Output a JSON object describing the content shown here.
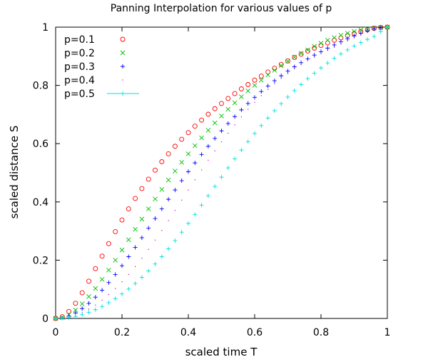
{
  "chart_data": {
    "type": "scatter",
    "title": "Panning Interpolation for various values of p",
    "xlabel": "scaled time T",
    "ylabel": "scaled distance S",
    "xlim": [
      0,
      1
    ],
    "ylim": [
      0,
      1
    ],
    "xticks": [
      0,
      0.2,
      0.4,
      0.6,
      0.8,
      1
    ],
    "yticks": [
      0,
      0.2,
      0.4,
      0.6,
      0.8,
      1
    ],
    "xtick_labels": [
      "0",
      "0.2",
      "0.4",
      "0.6",
      "0.8",
      "1"
    ],
    "ytick_labels": [
      "0",
      "0.2",
      "0.4",
      "0.6",
      "0.8",
      "1"
    ],
    "legend_position": "top-left",
    "grid": false,
    "series": [
      {
        "name": "p=0.1",
        "marker": "circle",
        "color": "#ff0000",
        "x": [
          0.0,
          0.02,
          0.04,
          0.06,
          0.08,
          0.1,
          0.12,
          0.14,
          0.16,
          0.18,
          0.2,
          0.22,
          0.24,
          0.26,
          0.28,
          0.3,
          0.32,
          0.34,
          0.36,
          0.38,
          0.4,
          0.42,
          0.44,
          0.46,
          0.48,
          0.5,
          0.52,
          0.54,
          0.56,
          0.58,
          0.6,
          0.62,
          0.64,
          0.66,
          0.68,
          0.7,
          0.72,
          0.74,
          0.76,
          0.78,
          0.8,
          0.82,
          0.84,
          0.86,
          0.88,
          0.9,
          0.92,
          0.94,
          0.96,
          0.98,
          1.0
        ],
        "y": [
          0.0,
          0.006,
          0.024,
          0.052,
          0.088,
          0.128,
          0.171,
          0.214,
          0.257,
          0.298,
          0.338,
          0.376,
          0.412,
          0.446,
          0.478,
          0.509,
          0.538,
          0.565,
          0.591,
          0.615,
          0.638,
          0.66,
          0.681,
          0.701,
          0.72,
          0.738,
          0.755,
          0.772,
          0.788,
          0.803,
          0.818,
          0.832,
          0.846,
          0.859,
          0.872,
          0.884,
          0.896,
          0.907,
          0.918,
          0.928,
          0.937,
          0.946,
          0.955,
          0.963,
          0.971,
          0.978,
          0.985,
          0.991,
          0.996,
          0.999,
          1.0
        ]
      },
      {
        "name": "p=0.2",
        "marker": "x",
        "color": "#00c000",
        "x": [
          0.0,
          0.02,
          0.04,
          0.06,
          0.08,
          0.1,
          0.12,
          0.14,
          0.16,
          0.18,
          0.2,
          0.22,
          0.24,
          0.26,
          0.28,
          0.3,
          0.32,
          0.34,
          0.36,
          0.38,
          0.4,
          0.42,
          0.44,
          0.46,
          0.48,
          0.5,
          0.52,
          0.54,
          0.56,
          0.58,
          0.6,
          0.62,
          0.64,
          0.66,
          0.68,
          0.7,
          0.72,
          0.74,
          0.76,
          0.78,
          0.8,
          0.82,
          0.84,
          0.86,
          0.88,
          0.9,
          0.92,
          0.94,
          0.96,
          0.98,
          1.0
        ],
        "y": [
          0.0,
          0.003,
          0.013,
          0.029,
          0.05,
          0.075,
          0.103,
          0.134,
          0.166,
          0.2,
          0.235,
          0.27,
          0.306,
          0.341,
          0.376,
          0.41,
          0.443,
          0.475,
          0.506,
          0.536,
          0.565,
          0.593,
          0.62,
          0.646,
          0.671,
          0.695,
          0.718,
          0.74,
          0.761,
          0.781,
          0.8,
          0.818,
          0.836,
          0.852,
          0.868,
          0.883,
          0.897,
          0.91,
          0.922,
          0.934,
          0.945,
          0.955,
          0.964,
          0.972,
          0.979,
          0.985,
          0.99,
          0.994,
          0.997,
          0.999,
          1.0
        ]
      },
      {
        "name": "p=0.3",
        "marker": "plus",
        "color": "#0000ff",
        "x": [
          0.0,
          0.02,
          0.04,
          0.06,
          0.08,
          0.1,
          0.12,
          0.14,
          0.16,
          0.18,
          0.2,
          0.22,
          0.24,
          0.26,
          0.28,
          0.3,
          0.32,
          0.34,
          0.36,
          0.38,
          0.4,
          0.42,
          0.44,
          0.46,
          0.48,
          0.5,
          0.52,
          0.54,
          0.56,
          0.58,
          0.6,
          0.62,
          0.64,
          0.66,
          0.68,
          0.7,
          0.72,
          0.74,
          0.76,
          0.78,
          0.8,
          0.82,
          0.84,
          0.86,
          0.88,
          0.9,
          0.92,
          0.94,
          0.96,
          0.98,
          1.0
        ],
        "y": [
          0.0,
          0.002,
          0.008,
          0.019,
          0.034,
          0.052,
          0.073,
          0.097,
          0.123,
          0.151,
          0.181,
          0.212,
          0.244,
          0.277,
          0.31,
          0.343,
          0.376,
          0.409,
          0.441,
          0.473,
          0.504,
          0.534,
          0.563,
          0.591,
          0.618,
          0.644,
          0.669,
          0.693,
          0.716,
          0.738,
          0.759,
          0.779,
          0.798,
          0.816,
          0.833,
          0.849,
          0.864,
          0.878,
          0.891,
          0.904,
          0.916,
          0.928,
          0.939,
          0.95,
          0.96,
          0.97,
          0.979,
          0.987,
          0.994,
          0.998,
          1.0
        ]
      },
      {
        "name": "p=0.4",
        "marker": "dot",
        "color": "#c000c0",
        "x": [
          0.0,
          0.02,
          0.04,
          0.06,
          0.08,
          0.1,
          0.12,
          0.14,
          0.16,
          0.18,
          0.2,
          0.22,
          0.24,
          0.26,
          0.28,
          0.3,
          0.32,
          0.34,
          0.36,
          0.38,
          0.4,
          0.42,
          0.44,
          0.46,
          0.48,
          0.5,
          0.52,
          0.54,
          0.56,
          0.58,
          0.6,
          0.62,
          0.64,
          0.66,
          0.68,
          0.7,
          0.72,
          0.74,
          0.76,
          0.78,
          0.8,
          0.82,
          0.84,
          0.86,
          0.88,
          0.9,
          0.92,
          0.94,
          0.96,
          0.98,
          1.0
        ],
        "y": [
          0.0,
          0.001,
          0.005,
          0.011,
          0.02,
          0.032,
          0.046,
          0.063,
          0.082,
          0.103,
          0.126,
          0.151,
          0.178,
          0.207,
          0.237,
          0.269,
          0.302,
          0.336,
          0.371,
          0.406,
          0.441,
          0.476,
          0.51,
          0.543,
          0.575,
          0.606,
          0.636,
          0.665,
          0.692,
          0.718,
          0.742,
          0.765,
          0.786,
          0.806,
          0.824,
          0.841,
          0.857,
          0.871,
          0.885,
          0.897,
          0.909,
          0.92,
          0.931,
          0.942,
          0.953,
          0.963,
          0.973,
          0.983,
          0.991,
          0.997,
          1.0
        ]
      },
      {
        "name": "p=0.5",
        "marker": "plus-line",
        "color": "#00e0e0",
        "x": [
          0.0,
          0.02,
          0.04,
          0.06,
          0.08,
          0.1,
          0.12,
          0.14,
          0.16,
          0.18,
          0.2,
          0.22,
          0.24,
          0.26,
          0.28,
          0.3,
          0.32,
          0.34,
          0.36,
          0.38,
          0.4,
          0.42,
          0.44,
          0.46,
          0.48,
          0.5,
          0.52,
          0.54,
          0.56,
          0.58,
          0.6,
          0.62,
          0.64,
          0.66,
          0.68,
          0.7,
          0.72,
          0.74,
          0.76,
          0.78,
          0.8,
          0.82,
          0.84,
          0.86,
          0.88,
          0.9,
          0.92,
          0.94,
          0.96,
          0.98,
          1.0
        ],
        "y": [
          0.0,
          0.001,
          0.003,
          0.007,
          0.013,
          0.021,
          0.03,
          0.041,
          0.054,
          0.068,
          0.084,
          0.101,
          0.12,
          0.141,
          0.163,
          0.187,
          0.212,
          0.239,
          0.267,
          0.296,
          0.326,
          0.357,
          0.389,
          0.421,
          0.453,
          0.485,
          0.517,
          0.548,
          0.578,
          0.607,
          0.635,
          0.662,
          0.688,
          0.713,
          0.737,
          0.76,
          0.782,
          0.803,
          0.823,
          0.842,
          0.86,
          0.877,
          0.893,
          0.908,
          0.922,
          0.935,
          0.947,
          0.958,
          0.968,
          0.985,
          1.0
        ]
      }
    ]
  }
}
